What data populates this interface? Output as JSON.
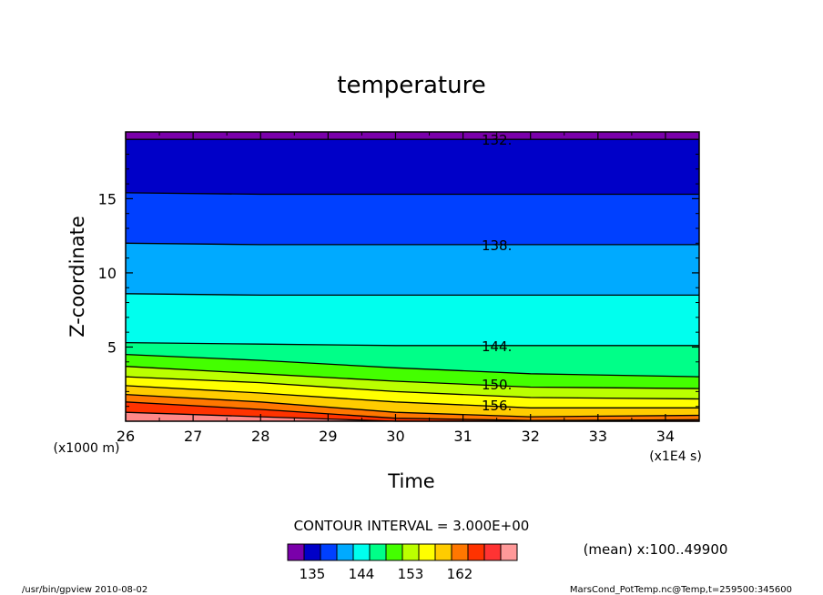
{
  "chart_data": {
    "type": "contour",
    "title": "temperature",
    "xlabel": "Time",
    "ylabel": "Z-coordinate",
    "x_unit_note": "(x1E4 s)",
    "y_unit_note": "(x1000 m)",
    "xlim": [
      26,
      34.5
    ],
    "ylim": [
      0,
      19.5
    ],
    "x_ticks": [
      "26",
      "27",
      "28",
      "29",
      "30",
      "31",
      "32",
      "33",
      "34"
    ],
    "y_ticks": [
      "5",
      "10",
      "15"
    ],
    "contour_interval_text": "CONTOUR INTERVAL = 3.000E+00",
    "contour_labels": [
      {
        "text": "132.",
        "x": 31.5,
        "z": 19.0
      },
      {
        "text": "138.",
        "x": 31.5,
        "z": 11.9
      },
      {
        "text": "144.",
        "x": 31.5,
        "z": 5.1
      },
      {
        "text": "150.",
        "x": 31.5,
        "z": 2.5
      },
      {
        "text": "156.",
        "x": 31.5,
        "z": 1.1
      }
    ],
    "levels": [
      132,
      135,
      138,
      141,
      144,
      147,
      150,
      153,
      156,
      159,
      162,
      165
    ],
    "band_tops_z": {
      "times": [
        26,
        28,
        30,
        32,
        34.5
      ],
      "bands": [
        {
          "color": "#7a00aa",
          "top": [
            19.5,
            19.5,
            19.5,
            19.5,
            19.5
          ]
        },
        {
          "color": "#0000c8",
          "top": [
            19.0,
            19.0,
            19.0,
            19.0,
            19.0
          ]
        },
        {
          "color": "#0040ff",
          "top": [
            15.4,
            15.3,
            15.3,
            15.3,
            15.3
          ]
        },
        {
          "color": "#00aaff",
          "top": [
            12.0,
            11.9,
            11.9,
            11.9,
            11.9
          ]
        },
        {
          "color": "#00ffee",
          "top": [
            8.6,
            8.5,
            8.5,
            8.5,
            8.5
          ]
        },
        {
          "color": "#00ff88",
          "top": [
            5.3,
            5.2,
            5.1,
            5.1,
            5.1
          ]
        },
        {
          "color": "#44ff00",
          "top": [
            4.5,
            4.1,
            3.6,
            3.2,
            3.0
          ]
        },
        {
          "color": "#bbff00",
          "top": [
            3.7,
            3.2,
            2.7,
            2.3,
            2.2
          ]
        },
        {
          "color": "#ffff00",
          "top": [
            3.0,
            2.6,
            2.0,
            1.6,
            1.5
          ]
        },
        {
          "color": "#ffcc00",
          "top": [
            2.4,
            1.9,
            1.3,
            0.9,
            0.9
          ]
        },
        {
          "color": "#ff7700",
          "top": [
            1.8,
            1.3,
            0.6,
            0.3,
            0.4
          ]
        },
        {
          "color": "#ff3300",
          "top": [
            1.3,
            0.8,
            0.2,
            0.05,
            0.1
          ]
        },
        {
          "color": "#ff8888",
          "top": [
            0.6,
            0.3,
            0.0,
            0.0,
            0.0
          ]
        }
      ]
    },
    "colorbar": {
      "colors": [
        "#7a00aa",
        "#0000c8",
        "#0040ff",
        "#00aaff",
        "#00ffee",
        "#00ff88",
        "#44ff00",
        "#bbff00",
        "#ffff00",
        "#ffcc00",
        "#ff7700",
        "#ff3300",
        "#ff3333",
        "#ff9999"
      ],
      "tick_labels": [
        "135",
        "144",
        "153",
        "162"
      ]
    },
    "mean_note": "(mean) x:100..49900"
  },
  "footer": {
    "left": "/usr/bin/gpview   2010-08-02",
    "right": "MarsCond_PotTemp.nc@Temp,t=259500:345600"
  }
}
